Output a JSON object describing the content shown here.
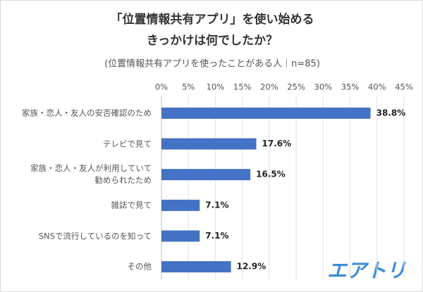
{
  "chart_data": {
    "type": "bar",
    "orientation": "horizontal",
    "title": [
      "「位置情報共有アプリ」を使い始める",
      "きっかけは何でしたか？"
    ],
    "subtitle": "(位置情報共有アプリを使ったことがある人｜n=85)",
    "categories": [
      "家族・恋人・友人の安否確認のため",
      "テレビで見て",
      "家族・恋人・友人が利用していて\n勧められたため",
      "雑誌で見て",
      "SNSで流行しているのを知って",
      "その他"
    ],
    "values": [
      38.8,
      17.6,
      16.5,
      7.1,
      7.1,
      12.9
    ],
    "value_labels": [
      "38.8%",
      "17.6%",
      "16.5%",
      "7.1%",
      "7.1%",
      "12.9%"
    ],
    "color": "#4472c4",
    "xlim": [
      0,
      45
    ],
    "xticks": [
      {
        "value": 0,
        "label": "0%"
      },
      {
        "value": 5,
        "label": "5%"
      },
      {
        "value": 10,
        "label": "10%"
      },
      {
        "value": 15,
        "label": "15%"
      },
      {
        "value": 20,
        "label": "20%"
      },
      {
        "value": 25,
        "label": "25%"
      },
      {
        "value": 30,
        "label": "30%"
      },
      {
        "value": 35,
        "label": "35%"
      },
      {
        "value": 40,
        "label": "40%"
      },
      {
        "value": 45,
        "label": "45%"
      }
    ],
    "grid": true,
    "logo": "エアトリ"
  }
}
